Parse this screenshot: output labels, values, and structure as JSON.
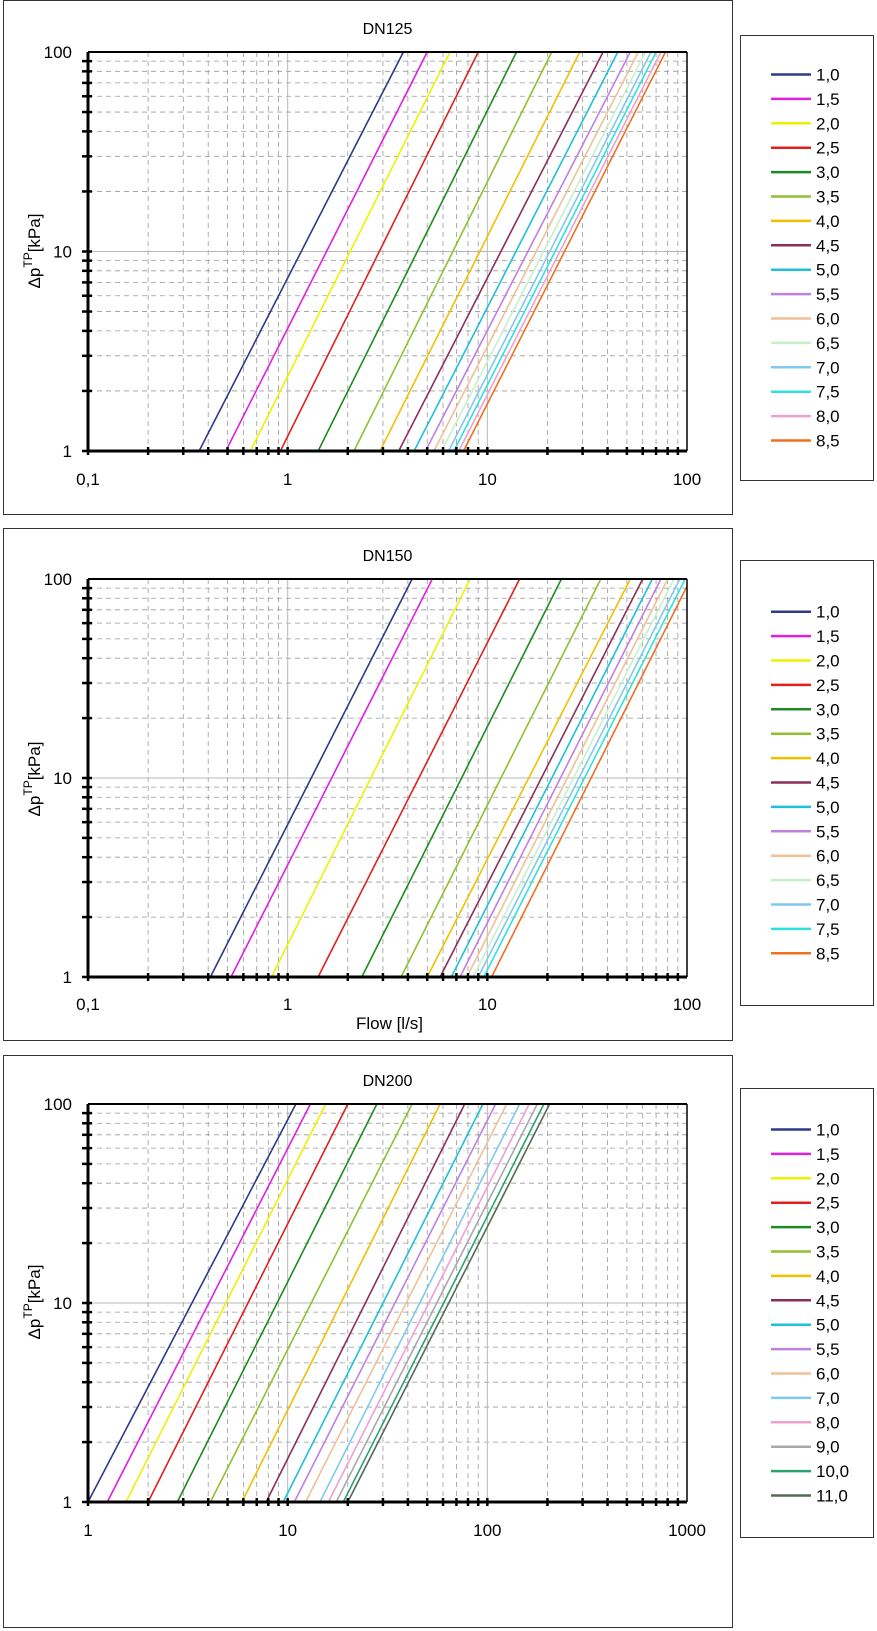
{
  "chart_data": [
    {
      "type": "line",
      "title": "DN125",
      "xlabel": "",
      "ylabel": "Δp^TP [kPa]",
      "ylabel_main": "Δp",
      "ylabel_sup": "TP",
      "ylabel_unit": "[kPa]",
      "x_scale": "log",
      "y_scale": "log",
      "xlim": [
        0.1,
        100
      ],
      "ylim": [
        1,
        100
      ],
      "x_ticks": [
        "0,1",
        "1",
        "10",
        "100"
      ],
      "y_ticks": [
        "1",
        "10",
        "100"
      ],
      "grid": true,
      "legend_position": "right",
      "series": [
        {
          "name": "1,0",
          "color": "#2e3a87",
          "x": [
            0.36,
            3.8
          ],
          "y": [
            1,
            100
          ]
        },
        {
          "name": "1,5",
          "color": "#e020e0",
          "x": [
            0.49,
            5.0
          ],
          "y": [
            1,
            100
          ]
        },
        {
          "name": "2,0",
          "color": "#f0f000",
          "x": [
            0.65,
            6.5
          ],
          "y": [
            1,
            100
          ]
        },
        {
          "name": "2,5",
          "color": "#e02020",
          "x": [
            0.92,
            9.0
          ],
          "y": [
            1,
            100
          ]
        },
        {
          "name": "3,0",
          "color": "#1f8a1f",
          "x": [
            1.42,
            14.0
          ],
          "y": [
            1,
            100
          ]
        },
        {
          "name": "3,5",
          "color": "#90c030",
          "x": [
            2.15,
            21.0
          ],
          "y": [
            1,
            100
          ]
        },
        {
          "name": "4,0",
          "color": "#f0c000",
          "x": [
            2.9,
            29.0
          ],
          "y": [
            1,
            100
          ]
        },
        {
          "name": "4,5",
          "color": "#8b2f5a",
          "x": [
            3.6,
            38.0
          ],
          "y": [
            1,
            100
          ]
        },
        {
          "name": "5,0",
          "color": "#1fc0d8",
          "x": [
            4.3,
            45.0
          ],
          "y": [
            1,
            100
          ]
        },
        {
          "name": "5,5",
          "color": "#c080e0",
          "x": [
            4.9,
            52.0
          ],
          "y": [
            1,
            100
          ]
        },
        {
          "name": "6,0",
          "color": "#f0c098",
          "x": [
            5.4,
            57.0
          ],
          "y": [
            1,
            100
          ]
        },
        {
          "name": "6,5",
          "color": "#c8f0c8",
          "x": [
            5.9,
            62.0
          ],
          "y": [
            1,
            100
          ]
        },
        {
          "name": "7,0",
          "color": "#80c8f0",
          "x": [
            6.4,
            66.0
          ],
          "y": [
            1,
            100
          ]
        },
        {
          "name": "7,5",
          "color": "#30e0e0",
          "x": [
            6.8,
            70.0
          ],
          "y": [
            1,
            100
          ]
        },
        {
          "name": "8,0",
          "color": "#f0a0d0",
          "x": [
            7.2,
            74.0
          ],
          "y": [
            1,
            100
          ]
        },
        {
          "name": "8,5",
          "color": "#f07020",
          "x": [
            7.6,
            78.0
          ],
          "y": [
            1,
            100
          ]
        }
      ]
    },
    {
      "type": "line",
      "title": "DN150",
      "xlabel": "Flow [l/s]",
      "ylabel": "Δp^TP [kPa]",
      "ylabel_main": "Δp",
      "ylabel_sup": "TP",
      "ylabel_unit": "[kPa]",
      "x_scale": "log",
      "y_scale": "log",
      "xlim": [
        0.1,
        100
      ],
      "ylim": [
        1,
        100
      ],
      "x_ticks": [
        "0,1",
        "1",
        "10",
        "100"
      ],
      "y_ticks": [
        "1",
        "10",
        "100"
      ],
      "grid": true,
      "legend_position": "right",
      "series": [
        {
          "name": "1,0",
          "color": "#2e3a87",
          "x": [
            0.41,
            4.2
          ],
          "y": [
            1,
            100
          ]
        },
        {
          "name": "1,5",
          "color": "#e020e0",
          "x": [
            0.52,
            5.3
          ],
          "y": [
            1,
            100
          ]
        },
        {
          "name": "2,0",
          "color": "#f0f000",
          "x": [
            0.83,
            8.2
          ],
          "y": [
            1,
            100
          ]
        },
        {
          "name": "2,5",
          "color": "#e02020",
          "x": [
            1.42,
            14.5
          ],
          "y": [
            1,
            100
          ]
        },
        {
          "name": "3,0",
          "color": "#1f8a1f",
          "x": [
            2.35,
            23.5
          ],
          "y": [
            1,
            100
          ]
        },
        {
          "name": "3,5",
          "color": "#90c030",
          "x": [
            3.7,
            37.0
          ],
          "y": [
            1,
            100
          ]
        },
        {
          "name": "4,0",
          "color": "#f0c000",
          "x": [
            5.0,
            52.0
          ],
          "y": [
            1,
            100
          ]
        },
        {
          "name": "4,5",
          "color": "#8b2f5a",
          "x": [
            5.8,
            60.0
          ],
          "y": [
            1,
            100
          ]
        },
        {
          "name": "5,0",
          "color": "#1fc0d8",
          "x": [
            6.6,
            67.0
          ],
          "y": [
            1,
            100
          ]
        },
        {
          "name": "5,5",
          "color": "#c080e0",
          "x": [
            7.3,
            74.0
          ],
          "y": [
            1,
            100
          ]
        },
        {
          "name": "6,0",
          "color": "#f0c098",
          "x": [
            7.9,
            80.0
          ],
          "y": [
            1,
            100
          ]
        },
        {
          "name": "6,5",
          "color": "#c8f0c8",
          "x": [
            8.5,
            86.0
          ],
          "y": [
            1,
            100
          ]
        },
        {
          "name": "7,0",
          "color": "#80c8f0",
          "x": [
            9.0,
            92.0
          ],
          "y": [
            1,
            100
          ]
        },
        {
          "name": "7,5",
          "color": "#30e0e0",
          "x": [
            9.6,
            98.0
          ],
          "y": [
            1,
            100
          ]
        },
        {
          "name": "8,5",
          "color": "#f07020",
          "x": [
            10.5,
            100.0
          ],
          "y": [
            1,
            92
          ]
        }
      ]
    },
    {
      "type": "line",
      "title": "DN200",
      "xlabel": "",
      "ylabel": "Δp^TP [kPa]",
      "ylabel_main": "Δp",
      "ylabel_sup": "TP",
      "ylabel_unit": "[kPa]",
      "x_scale": "log",
      "y_scale": "log",
      "xlim": [
        1,
        1000
      ],
      "ylim": [
        1,
        100
      ],
      "x_ticks": [
        "1",
        "10",
        "100",
        "1000"
      ],
      "y_ticks": [
        "1",
        "10",
        "100"
      ],
      "grid": true,
      "legend_position": "right",
      "series": [
        {
          "name": "1,0",
          "color": "#2e3a87",
          "x": [
            1.0,
            11.0
          ],
          "y": [
            1,
            100
          ]
        },
        {
          "name": "1,5",
          "color": "#e020e0",
          "x": [
            1.25,
            13.0
          ],
          "y": [
            1,
            100
          ]
        },
        {
          "name": "2,0",
          "color": "#f0f000",
          "x": [
            1.55,
            15.5
          ],
          "y": [
            1,
            100
          ]
        },
        {
          "name": "2,5",
          "color": "#e02020",
          "x": [
            2.0,
            20.0
          ],
          "y": [
            1,
            100
          ]
        },
        {
          "name": "3,0",
          "color": "#1f8a1f",
          "x": [
            2.8,
            28.0
          ],
          "y": [
            1,
            100
          ]
        },
        {
          "name": "3,5",
          "color": "#90c030",
          "x": [
            4.1,
            42.0
          ],
          "y": [
            1,
            100
          ]
        },
        {
          "name": "4,0",
          "color": "#f0c000",
          "x": [
            5.9,
            58.0
          ],
          "y": [
            1,
            100
          ]
        },
        {
          "name": "4,5",
          "color": "#8b2f5a",
          "x": [
            7.8,
            77.0
          ],
          "y": [
            1,
            100
          ]
        },
        {
          "name": "5,0",
          "color": "#1fc0d8",
          "x": [
            9.5,
            95.0
          ],
          "y": [
            1,
            100
          ]
        },
        {
          "name": "5,5",
          "color": "#c080e0",
          "x": [
            10.8,
            110.0
          ],
          "y": [
            1,
            100
          ]
        },
        {
          "name": "6,0",
          "color": "#f0c098",
          "x": [
            12.3,
            125.0
          ],
          "y": [
            1,
            100
          ]
        },
        {
          "name": "7,0",
          "color": "#80c8f0",
          "x": [
            14.5,
            145.0
          ],
          "y": [
            1,
            100
          ]
        },
        {
          "name": "8,0",
          "color": "#f0a0d0",
          "x": [
            16.0,
            162.0
          ],
          "y": [
            1,
            100
          ]
        },
        {
          "name": "9,0",
          "color": "#a8a8a8",
          "x": [
            17.5,
            178.0
          ],
          "y": [
            1,
            100
          ]
        },
        {
          "name": "10,0",
          "color": "#2fa070",
          "x": [
            19.0,
            192.0
          ],
          "y": [
            1,
            100
          ]
        },
        {
          "name": "11,0",
          "color": "#556b55",
          "x": [
            20.0,
            205.0
          ],
          "y": [
            1,
            100
          ]
        }
      ]
    }
  ]
}
